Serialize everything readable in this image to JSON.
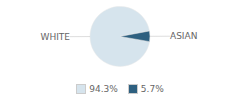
{
  "chart_data": {
    "type": "pie",
    "categories": [
      "WHITE",
      "ASIAN"
    ],
    "values": [
      94.3,
      5.7
    ],
    "value_labels": [
      "94.3%",
      "5.7%"
    ],
    "colors": [
      "#d6e4ed",
      "#2e6080"
    ],
    "legend": "bottom"
  }
}
